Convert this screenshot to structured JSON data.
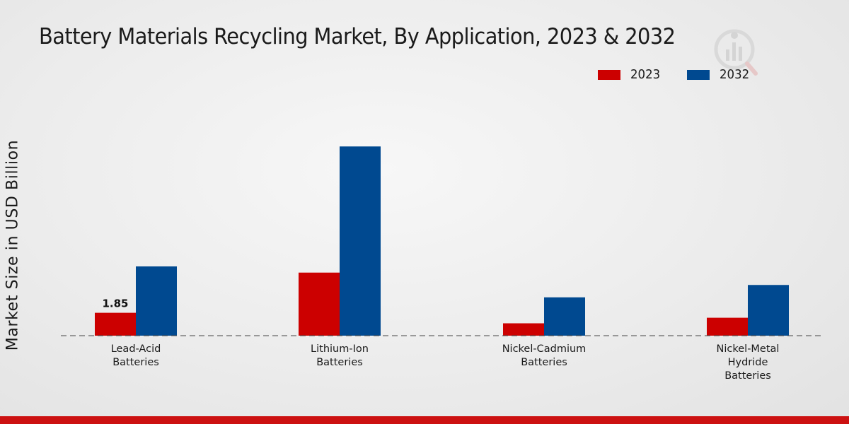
{
  "colors": {
    "series_2023": "#cc0000",
    "series_2032": "#004990",
    "footer": "#cc1111"
  },
  "chart_data": {
    "type": "bar",
    "title": "Battery Materials Recycling Market, By Application, 2023 & 2032",
    "xlabel": "",
    "ylabel": "Market Size in USD Billion",
    "categories": [
      [
        "Lead-Acid",
        "Batteries"
      ],
      [
        "Lithium-Ion",
        "Batteries"
      ],
      [
        "Nickel-Cadmium",
        "Batteries"
      ],
      [
        "Nickel-Metal",
        "Hydride",
        "Batteries"
      ]
    ],
    "series": [
      {
        "name": "2023",
        "values": [
          1.85,
          5.1,
          1.0,
          1.45
        ]
      },
      {
        "name": "2032",
        "values": [
          5.6,
          15.3,
          3.1,
          4.1
        ]
      }
    ],
    "data_labels": [
      {
        "series": 0,
        "index": 0,
        "text": "1.85"
      }
    ],
    "ylim": [
      0,
      22
    ],
    "legend": "top-right",
    "grid": false
  }
}
